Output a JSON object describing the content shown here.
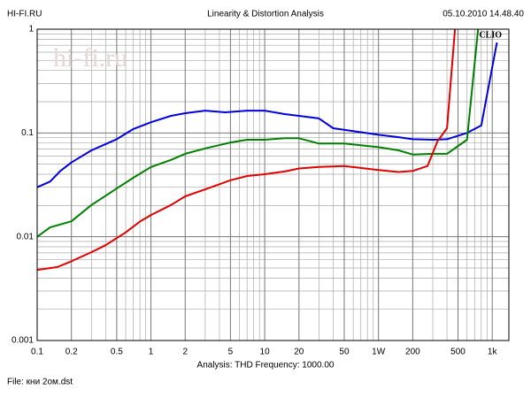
{
  "chart_data": {
    "type": "line",
    "title": "Linearity & Distortion Analysis",
    "header_left": "HI-FI.RU",
    "header_right": "05.10.2010 14.48.40",
    "footer_analysis": "Analysis: THD   Frequency: 1000.00",
    "footer_file": "File: кни 2ом.dst",
    "annotations": [
      "CLIO",
      "hi-fi.ru"
    ],
    "log_x": true,
    "log_y": true,
    "grid": true,
    "xlim": [
      0.1,
      1400
    ],
    "ylim": [
      0.001,
      1
    ],
    "xticks": [
      0.1,
      0.2,
      0.5,
      1,
      2,
      5,
      10,
      20,
      50,
      {
        "value": 100,
        "label": "1W"
      },
      200,
      500,
      {
        "value": 1000,
        "label": "1k"
      }
    ],
    "yticks": [
      0.001,
      0.01,
      0.1,
      1
    ],
    "xgrid": [
      0.3,
      0.4,
      0.6,
      0.7,
      0.8,
      0.9,
      3,
      4,
      6,
      7,
      8,
      9,
      30,
      40,
      60,
      70,
      80,
      90,
      300,
      400,
      600,
      700,
      800,
      900
    ],
    "ygrid": [
      0.002,
      0.003,
      0.004,
      0.005,
      0.006,
      0.007,
      0.008,
      0.009,
      0.02,
      0.03,
      0.04,
      0.05,
      0.06,
      0.07,
      0.08,
      0.09,
      0.2,
      0.3,
      0.4,
      0.5,
      0.6,
      0.7,
      0.8,
      0.9
    ],
    "series": [
      {
        "color": "#0000dd",
        "x": [
          0.1,
          0.13,
          0.16,
          0.2,
          0.3,
          0.5,
          0.7,
          1,
          1.5,
          2,
          3,
          4.5,
          7,
          10,
          15,
          20,
          30,
          40,
          60,
          100,
          150,
          200,
          300,
          400,
          600,
          800,
          1100
        ],
        "values": [
          0.03,
          0.034,
          0.043,
          0.052,
          0.068,
          0.087,
          0.109,
          0.127,
          0.146,
          0.155,
          0.164,
          0.158,
          0.164,
          0.164,
          0.152,
          0.146,
          0.138,
          0.111,
          0.104,
          0.096,
          0.091,
          0.087,
          0.086,
          0.087,
          0.1,
          0.118,
          0.745
        ]
      },
      {
        "color": "#008000",
        "x": [
          0.1,
          0.13,
          0.2,
          0.3,
          0.5,
          0.7,
          1,
          1.5,
          2,
          3,
          5,
          7,
          10,
          15,
          20,
          30,
          50,
          70,
          100,
          150,
          200,
          300,
          400,
          600,
          750
        ],
        "values": [
          0.01,
          0.0123,
          0.0141,
          0.0202,
          0.0292,
          0.037,
          0.047,
          0.055,
          0.063,
          0.071,
          0.081,
          0.086,
          0.086,
          0.089,
          0.089,
          0.079,
          0.079,
          0.076,
          0.073,
          0.068,
          0.062,
          0.063,
          0.063,
          0.086,
          1
        ]
      },
      {
        "color": "#e00000",
        "x": [
          0.1,
          0.15,
          0.2,
          0.3,
          0.4,
          0.6,
          0.8,
          1,
          1.5,
          2,
          3,
          5,
          7,
          10,
          15,
          20,
          30,
          50,
          70,
          100,
          150,
          200,
          270,
          330,
          400,
          470
        ],
        "values": [
          0.0048,
          0.0051,
          0.0058,
          0.0071,
          0.0083,
          0.011,
          0.014,
          0.0162,
          0.0202,
          0.0245,
          0.0286,
          0.035,
          0.0385,
          0.04,
          0.0425,
          0.0455,
          0.047,
          0.048,
          0.046,
          0.044,
          0.042,
          0.043,
          0.048,
          0.083,
          0.111,
          1
        ]
      }
    ]
  }
}
